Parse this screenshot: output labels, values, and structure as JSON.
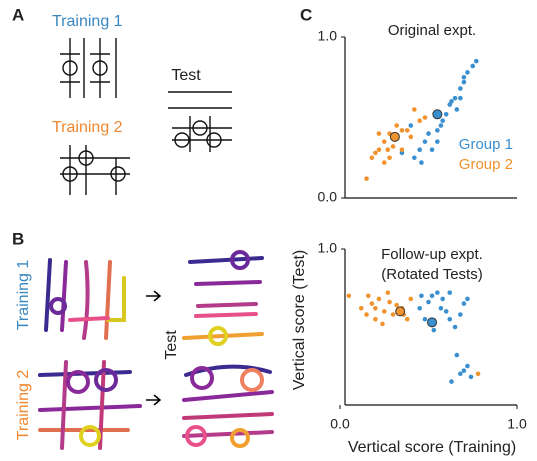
{
  "panel_labels": [
    "A",
    "B",
    "C"
  ],
  "panel_a": {
    "training_1": "Training 1",
    "training_2": "Training 2",
    "test": "Test"
  },
  "panel_b": {
    "training_1": "Training 1",
    "training_2": "Training 2",
    "test": "Test"
  },
  "panel_c": {
    "y_label": "Vertical score (Test)",
    "x_label": "Vertical score (Training)"
  },
  "chart_data": [
    {
      "type": "scatter",
      "title": "Original expt.",
      "xlim": [
        0,
        1
      ],
      "ylim": [
        0,
        1
      ],
      "yticks": [
        {
          "value": 0,
          "label": "0.0"
        },
        {
          "value": 1,
          "label": "1.0"
        }
      ],
      "series": [
        {
          "name": "Group 1",
          "color": "#3a8fd0",
          "x": [
            0.62,
            0.65,
            0.68,
            0.7,
            0.72,
            0.75,
            0.77,
            0.7,
            0.66,
            0.6,
            0.58,
            0.55,
            0.5,
            0.48,
            0.45,
            0.42,
            0.52,
            0.55,
            0.63,
            0.57,
            0.4,
            0.68,
            0.46,
            0.35
          ],
          "y": [
            0.58,
            0.62,
            0.68,
            0.72,
            0.78,
            0.82,
            0.85,
            0.75,
            0.55,
            0.52,
            0.48,
            0.42,
            0.4,
            0.35,
            0.3,
            0.25,
            0.3,
            0.35,
            0.6,
            0.45,
            0.45,
            0.62,
            0.22,
            0.28
          ],
          "mean_x": 0.55,
          "mean_y": 0.52
        },
        {
          "name": "Group 2",
          "color": "#f0922d",
          "x": [
            0.22,
            0.25,
            0.28,
            0.3,
            0.2,
            0.18,
            0.25,
            0.32,
            0.35,
            0.4,
            0.45,
            0.38,
            0.28,
            0.15,
            0.3,
            0.22,
            0.42,
            0.48,
            0.35,
            0.27
          ],
          "y": [
            0.3,
            0.35,
            0.4,
            0.38,
            0.28,
            0.25,
            0.22,
            0.45,
            0.3,
            0.38,
            0.48,
            0.42,
            0.25,
            0.12,
            0.32,
            0.4,
            0.55,
            0.5,
            0.42,
            0.3
          ],
          "mean_x": 0.31,
          "mean_y": 0.38
        }
      ]
    },
    {
      "type": "scatter",
      "title": [
        "Follow-up expt.",
        "(Rotated Tests)"
      ],
      "xlim": [
        0,
        1
      ],
      "ylim": [
        0,
        1
      ],
      "xticks": [
        {
          "value": 0,
          "label": "0.0"
        },
        {
          "value": 1,
          "label": "1.0"
        }
      ],
      "yticks": [
        {
          "value": 1,
          "label": "1.0"
        }
      ],
      "series": [
        {
          "color": "#3a8fd0",
          "x": [
            0.45,
            0.5,
            0.52,
            0.55,
            0.58,
            0.6,
            0.62,
            0.65,
            0.68,
            0.7,
            0.48,
            0.53,
            0.57,
            0.46,
            0.62,
            0.72,
            0.66,
            0.7,
            0.74,
            0.68,
            0.72,
            0.63
          ],
          "y": [
            0.62,
            0.66,
            0.7,
            0.72,
            0.68,
            0.6,
            0.55,
            0.5,
            0.58,
            0.65,
            0.55,
            0.48,
            0.62,
            0.7,
            0.72,
            0.68,
            0.32,
            0.22,
            0.18,
            0.2,
            0.25,
            0.15
          ],
          "mean_x": 0.52,
          "mean_y": 0.53
        },
        {
          "color": "#f0922d",
          "x": [
            0.12,
            0.15,
            0.18,
            0.2,
            0.22,
            0.25,
            0.28,
            0.3,
            0.35,
            0.38,
            0.4,
            0.16,
            0.24,
            0.32,
            0.27,
            0.05,
            0.78,
            0.2,
            0.36
          ],
          "y": [
            0.62,
            0.58,
            0.65,
            0.55,
            0.68,
            0.6,
            0.66,
            0.58,
            0.62,
            0.55,
            0.68,
            0.7,
            0.52,
            0.64,
            0.72,
            0.7,
            0.2,
            0.62,
            0.58
          ],
          "mean_x": 0.34,
          "mean_y": 0.6
        }
      ]
    }
  ]
}
